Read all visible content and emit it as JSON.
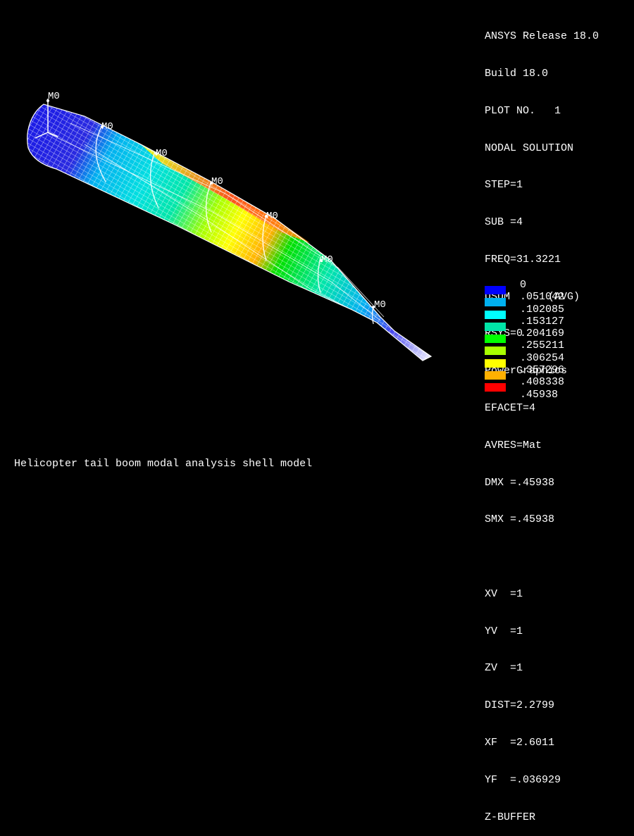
{
  "info": {
    "lines": [
      "ANSYS Release 18.0",
      "Build 18.0",
      "PLOT NO.   1",
      "NODAL SOLUTION",
      "STEP=1",
      "SUB =4",
      "FREQ=31.3221",
      "USUM      (AVG)",
      "RSYS=0",
      "PowerGraphics",
      "EFACET=4",
      "AVRES=Mat",
      "DMX =.45938",
      "SMX =.45938"
    ],
    "view_lines": [
      "XV  =1",
      "YV  =1",
      "ZV  =1",
      "DIST=2.2799",
      "XF  =2.6011",
      "YF  =.036929",
      "Z-BUFFER"
    ]
  },
  "legend": {
    "items": [
      {
        "label": "0",
        "color": "#0000ff"
      },
      {
        "label": ".051042",
        "color": "#00b0f0"
      },
      {
        "label": ".102085",
        "color": "#00ffff"
      },
      {
        "label": ".153127",
        "color": "#00e6a8"
      },
      {
        "label": ".204169",
        "color": "#00ff00"
      },
      {
        "label": ".255211",
        "color": "#a8ff00"
      },
      {
        "label": ".306254",
        "color": "#ffff00"
      },
      {
        "label": ".357296",
        "color": "#ffb000"
      },
      {
        "label": ".408338",
        "color": "#ff0000"
      }
    ],
    "max_label": ".45938"
  },
  "markers": {
    "label": "M0"
  },
  "caption": "Helicopter tail boom modal analysis shell model"
}
